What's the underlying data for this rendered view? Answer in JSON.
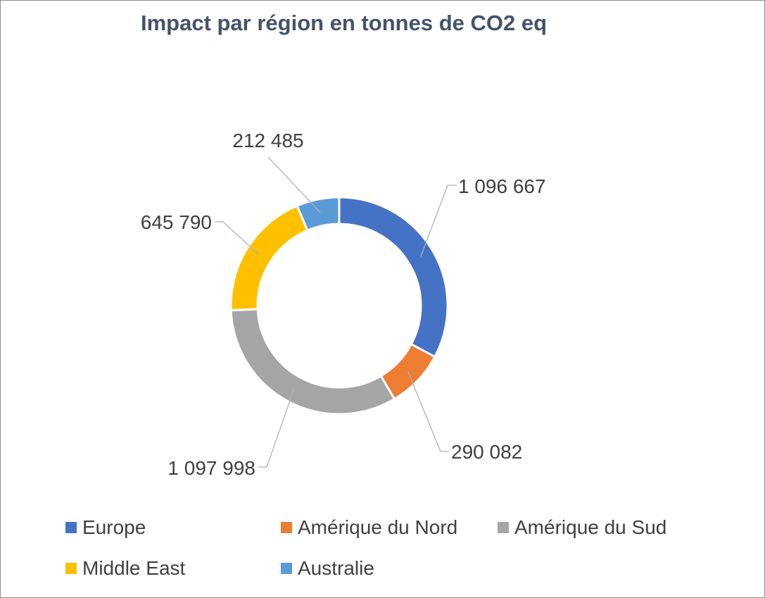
{
  "chart_data": {
    "type": "pie",
    "variant": "donut",
    "title": "Impact par région en tonnes de CO2 eq",
    "categories": [
      "Europe",
      "Amérique du Nord",
      "Amérique du Sud",
      "Middle East",
      "Australie"
    ],
    "values": [
      1096667,
      290082,
      1097998,
      645790,
      212485
    ],
    "data_labels": [
      "1 096 667",
      "290 082",
      "1 097 998",
      "645 790",
      "212 485"
    ],
    "colors": [
      "#4472c4",
      "#ed7d31",
      "#a5a5a5",
      "#ffc000",
      "#5b9bd5"
    ],
    "legend": "bottom"
  }
}
